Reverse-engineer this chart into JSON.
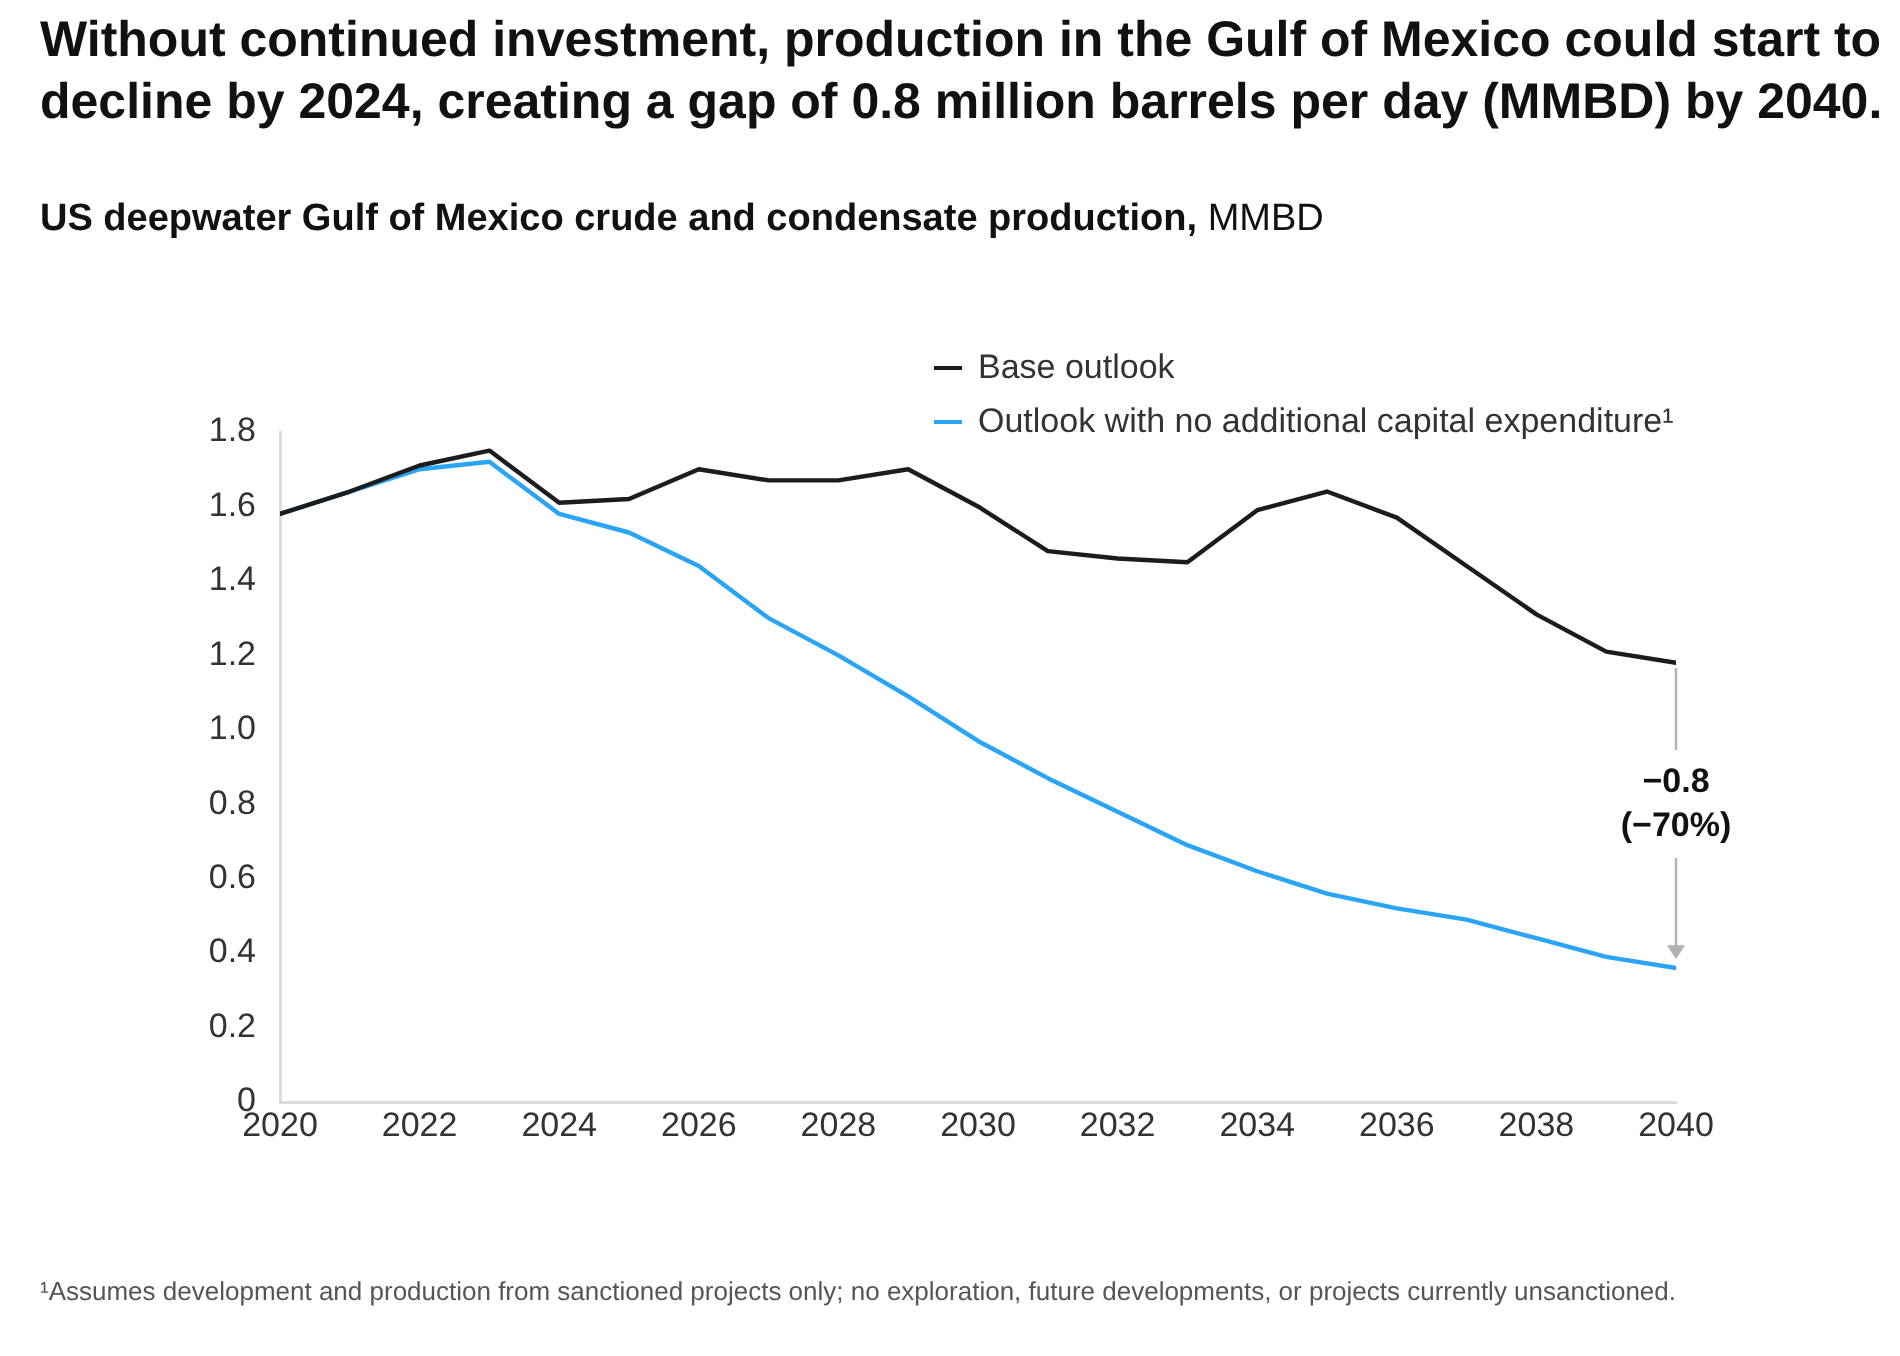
{
  "chart_data": {
    "type": "line",
    "title": "Without continued investment, production in the Gulf of Mexico could start to decline by 2024, creating a gap of 0.8 million barrels per day (MMBD) by 2040.",
    "subtitle": "US deepwater Gulf of Mexico crude and condensate production,",
    "x": [
      2020,
      2021,
      2022,
      2023,
      2024,
      2025,
      2026,
      2027,
      2028,
      2029,
      2030,
      2031,
      2032,
      2033,
      2034,
      2035,
      2036,
      2037,
      2038,
      2039,
      2040
    ],
    "series": [
      {
        "name": "Base outlook",
        "color": "#1c1c1c",
        "values": [
          1.58,
          1.64,
          1.71,
          1.75,
          1.61,
          1.62,
          1.7,
          1.67,
          1.67,
          1.7,
          1.6,
          1.48,
          1.46,
          1.45,
          1.59,
          1.64,
          1.57,
          1.44,
          1.31,
          1.21,
          1.18
        ]
      },
      {
        "name": "Outlook with no additional capital expenditure¹",
        "color": "#2aa4f4",
        "values": [
          1.58,
          1.64,
          1.7,
          1.72,
          1.58,
          1.53,
          1.44,
          1.3,
          1.2,
          1.09,
          0.97,
          0.87,
          0.78,
          0.69,
          0.62,
          0.56,
          0.52,
          0.49,
          0.44,
          0.39,
          0.36
        ]
      }
    ],
    "xlim": [
      2020,
      2040
    ],
    "xticks": [
      2020,
      2022,
      2024,
      2026,
      2028,
      2030,
      2032,
      2034,
      2036,
      2038,
      2040
    ],
    "ylim": [
      0,
      1.8
    ],
    "yticks": [
      0,
      0.2,
      0.4,
      0.6,
      0.8,
      {
        "value": 1,
        "label": "1.0"
      },
      1.2,
      1.4,
      1.6,
      1.8
    ],
    "grid": false,
    "legend": "top",
    "marker": "none",
    "line_style": "solid",
    "annotations": [
      "MMBD",
      {
        "text": "−0.8 (−70%)",
        "x": 2040,
        "y": 1.18
      },
      "¹Assumes development and production from sanctioned projects only; no exploration, future developments, or projects currently unsanctioned."
    ]
  }
}
